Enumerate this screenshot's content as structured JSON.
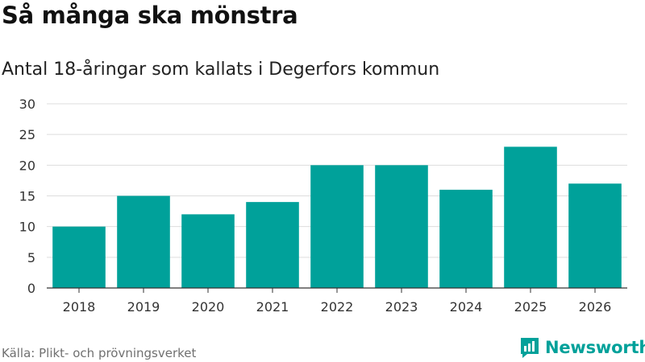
{
  "header": {
    "title": "Så många ska mönstra",
    "subtitle": "Antal 18-åringar som kallats i Degerfors kommun"
  },
  "footer": {
    "source": "Källa: Plikt- och prövningsverket",
    "brand": "Newsworthy"
  },
  "colors": {
    "bar": "#00a19a",
    "brand": "#00a19a",
    "grid": "#dddddd",
    "axis": "#333333"
  },
  "chart_data": {
    "type": "bar",
    "title": "Så många ska mönstra",
    "subtitle": "Antal 18-åringar som kallats i Degerfors kommun",
    "categories": [
      "2018",
      "2019",
      "2020",
      "2021",
      "2022",
      "2023",
      "2024",
      "2025",
      "2026"
    ],
    "values": [
      10,
      15,
      12,
      14,
      20,
      20,
      16,
      23,
      17
    ],
    "yticks": [
      0,
      5,
      10,
      15,
      20,
      25,
      30
    ],
    "ylim": [
      0,
      30
    ],
    "xlabel": "",
    "ylabel": "",
    "grid": true,
    "legend": "none"
  }
}
